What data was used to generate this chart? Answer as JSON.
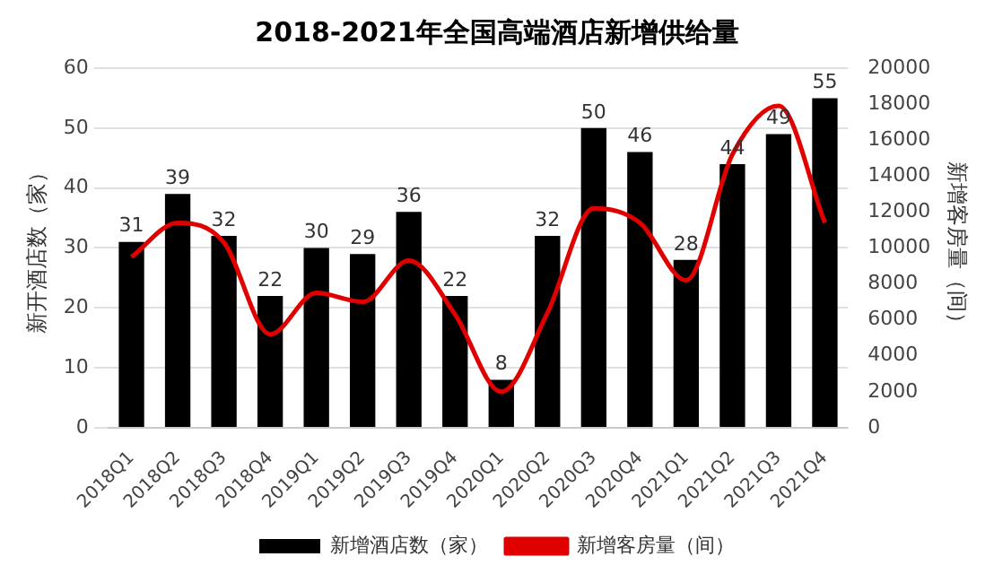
{
  "chart_data": {
    "type": "bar",
    "title": "2018-2021年全国高端酒店新增供给量",
    "ylabel": "新开酒店数（家）",
    "y2label": "新增客房量（间）",
    "categories": [
      "2018Q1",
      "2018Q2",
      "2018Q3",
      "2018Q4",
      "2019Q1",
      "2019Q2",
      "2019Q3",
      "2019Q4",
      "2020Q1",
      "2020Q2",
      "2020Q3",
      "2020Q4",
      "2021Q1",
      "2021Q2",
      "2021Q3",
      "2021Q4"
    ],
    "series": [
      {
        "name": "新增酒店数（家）",
        "color": "#000000",
        "values": [
          31,
          39,
          32,
          22,
          30,
          29,
          36,
          22,
          8,
          32,
          50,
          46,
          28,
          44,
          49,
          55
        ],
        "value_labels": [
          "31",
          "39",
          "32",
          "22",
          "30",
          "29",
          "36",
          "22",
          "8",
          "32",
          "50",
          "46",
          "28",
          "44",
          "49",
          "55"
        ]
      },
      {
        "name": "新增客房量（间）",
        "type": "line",
        "axis": "y2",
        "color": "#e00000",
        "marker": "none",
        "values": [
          9500,
          11400,
          10300,
          5200,
          7500,
          7000,
          9300,
          6300,
          2000,
          6400,
          12200,
          11400,
          8200,
          15200,
          17900,
          11400
        ]
      }
    ],
    "ylim": [
      0,
      60
    ],
    "yticks": [
      0,
      10,
      20,
      30,
      40,
      50,
      60
    ],
    "y2lim": [
      0,
      20000
    ],
    "y2ticks": [
      0,
      2000,
      4000,
      6000,
      8000,
      10000,
      12000,
      14000,
      16000,
      18000,
      20000
    ],
    "grid": "y",
    "legend": "bottom"
  }
}
